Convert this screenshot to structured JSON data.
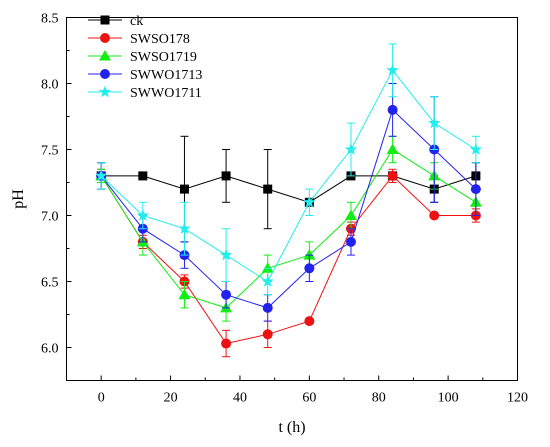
{
  "chart_data": {
    "type": "line",
    "title": "",
    "xlabel": "t (h)",
    "ylabel": "pH",
    "xlim": [
      -10,
      120
    ],
    "ylim": [
      5.75,
      8.5
    ],
    "xticks": [
      0,
      20,
      40,
      60,
      80,
      100,
      120
    ],
    "yticks": [
      6.0,
      6.5,
      7.0,
      7.5,
      8.0,
      8.5
    ],
    "ytick_labels": [
      "6.0",
      "6.5",
      "7.0",
      "7.5",
      "8.0",
      "8.5"
    ],
    "grid": false,
    "legend_position": "top-left",
    "x": [
      0,
      12,
      24,
      36,
      48,
      60,
      72,
      84,
      96,
      108
    ],
    "series": [
      {
        "name": "ck",
        "color": "#000000",
        "marker": "square",
        "values": [
          7.3,
          7.3,
          7.2,
          7.3,
          7.2,
          7.1,
          7.3,
          7.3,
          7.2,
          7.3
        ],
        "errors": [
          0.1,
          0.0,
          0.4,
          0.2,
          0.3,
          0.0,
          0.0,
          0.0,
          0.1,
          0.1
        ]
      },
      {
        "name": "SWSO178",
        "color": "#ee1111",
        "marker": "circle",
        "values": [
          7.3,
          6.8,
          6.5,
          6.03,
          6.1,
          6.2,
          6.9,
          7.3,
          7.0,
          7.0
        ],
        "errors": [
          0.05,
          0.05,
          0.05,
          0.1,
          0.1,
          0.0,
          0.05,
          0.05,
          0.0,
          0.05
        ]
      },
      {
        "name": "SWSO1719",
        "color": "#11ee11",
        "marker": "triangle",
        "values": [
          7.3,
          6.8,
          6.4,
          6.3,
          6.6,
          6.7,
          7.0,
          7.5,
          7.3,
          7.1
        ],
        "errors": [
          0.05,
          0.1,
          0.1,
          0.1,
          0.1,
          0.1,
          0.1,
          0.1,
          0.1,
          0.1
        ]
      },
      {
        "name": "SWWO1713",
        "color": "#2222ee",
        "marker": "circle",
        "values": [
          7.3,
          6.9,
          6.7,
          6.4,
          6.3,
          6.6,
          6.8,
          7.8,
          7.5,
          7.2
        ],
        "errors": [
          0.1,
          0.1,
          0.1,
          0.1,
          0.1,
          0.1,
          0.1,
          0.2,
          0.4,
          0.2
        ]
      },
      {
        "name": "SWWO1711",
        "color": "#22eeee",
        "marker": "star",
        "values": [
          7.3,
          7.0,
          6.9,
          6.7,
          6.5,
          7.1,
          7.5,
          8.1,
          7.7,
          7.5
        ],
        "errors": [
          0.1,
          0.1,
          0.2,
          0.2,
          0.1,
          0.1,
          0.2,
          0.2,
          0.2,
          0.1
        ]
      }
    ]
  }
}
